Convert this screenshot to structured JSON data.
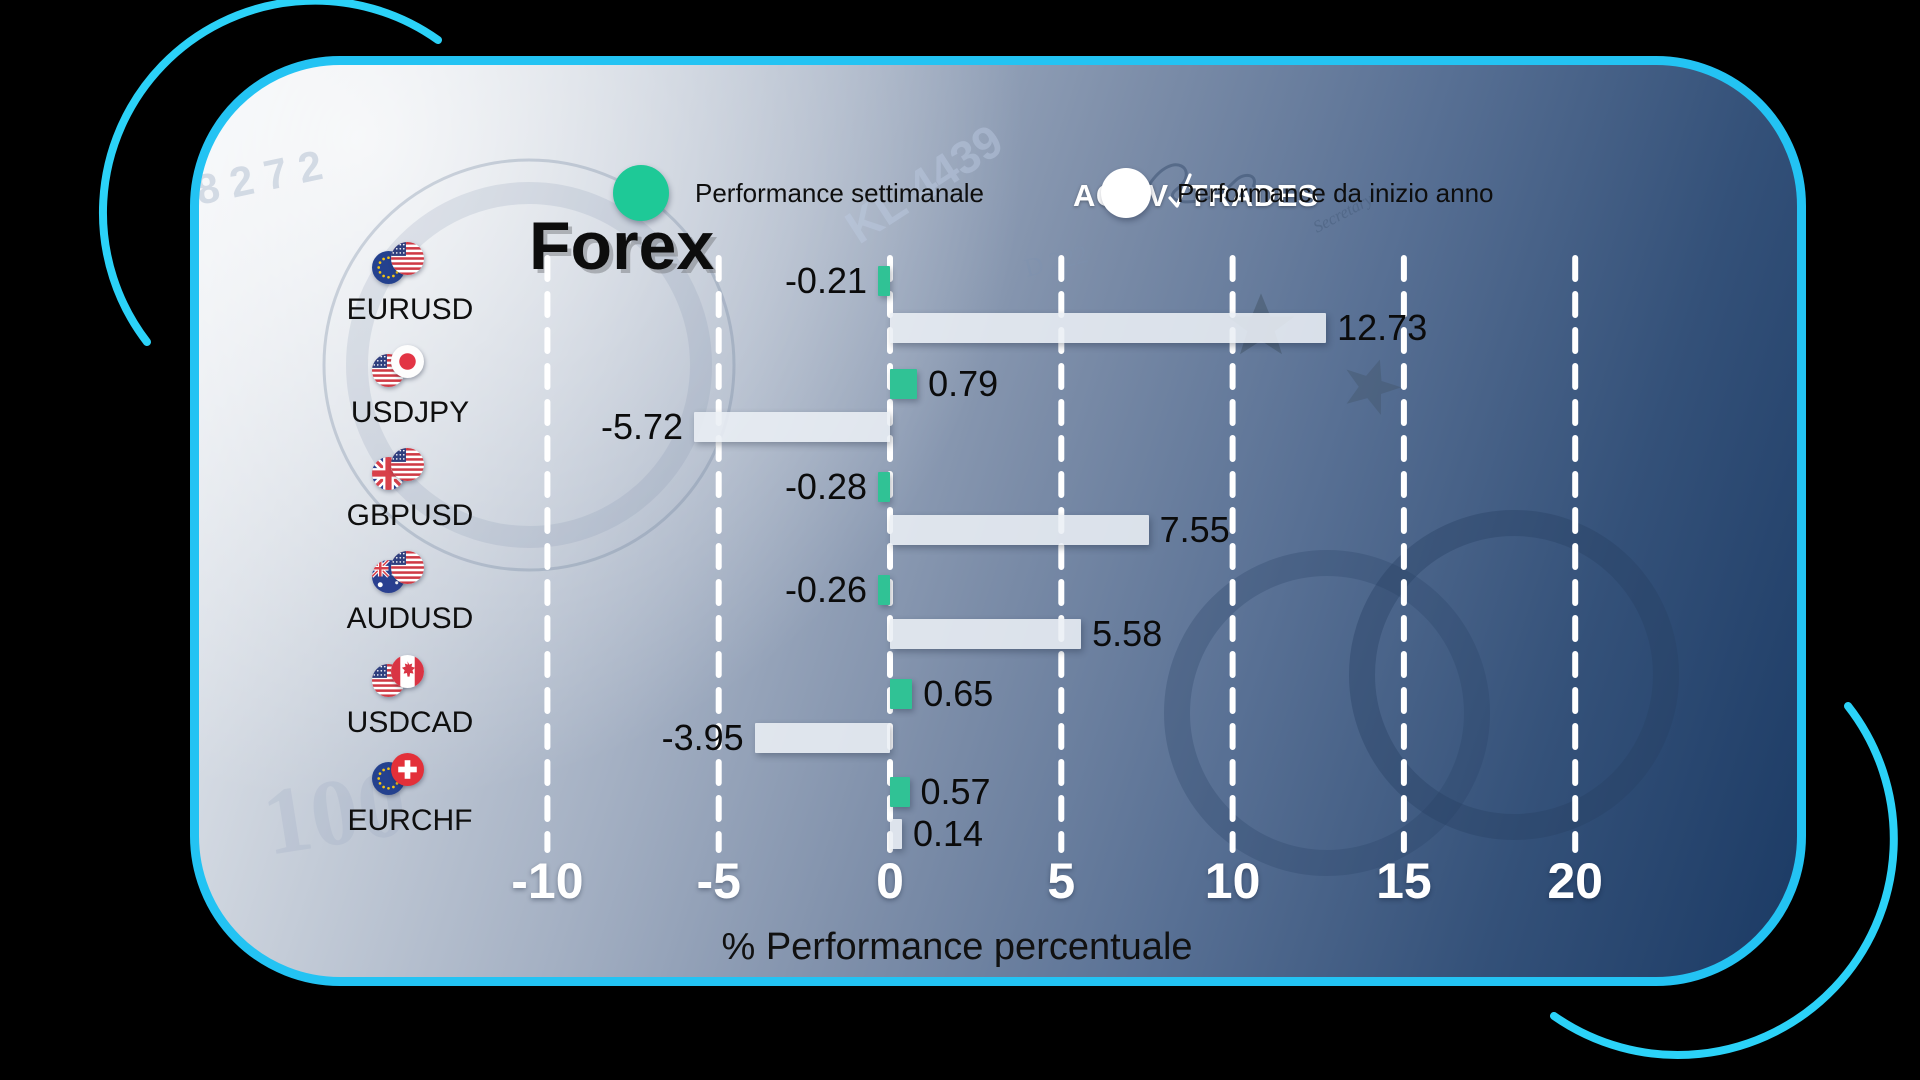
{
  "brand": {
    "logo_left": "ACTIV",
    "logo_right": "TRADES"
  },
  "title": "Forex",
  "legend": [
    {
      "label": "Performance settimanale",
      "color": "#1ec997"
    },
    {
      "label": "Performance da inizio anno",
      "color": "#ffffff"
    }
  ],
  "colors": {
    "border_accent": "#23c3f3",
    "weekly_bar": "#30c295",
    "ytd_bar": "#e9edf3",
    "text_dark": "#0d0d0d",
    "axis_text": "#ffffff"
  },
  "chart_data": {
    "type": "bar",
    "orientation": "horizontal",
    "title": "Forex",
    "xlabel": "% Performance percentuale",
    "categories": [
      "EURUSD",
      "USDJPY",
      "GBPUSD",
      "AUDUSD",
      "USDCAD",
      "EURCHF"
    ],
    "series": [
      {
        "name": "Performance settimanale",
        "color": "#1ec997",
        "values": [
          -0.21,
          0.79,
          -0.28,
          -0.26,
          0.65,
          0.57
        ]
      },
      {
        "name": "Performance da inizio anno",
        "color": "#e9edf3",
        "values": [
          12.73,
          -5.72,
          7.55,
          5.58,
          -3.95,
          0.14
        ]
      }
    ],
    "x_ticks": [
      -10,
      -5,
      0,
      5,
      10,
      15,
      20
    ],
    "xlim": [
      -12.5,
      22.5
    ],
    "grid": "dashed-vertical",
    "legend_position": "top"
  },
  "pairs": [
    {
      "name": "EURUSD",
      "flags": [
        "eu-flag-icon",
        "us-flag-icon"
      ]
    },
    {
      "name": "USDJPY",
      "flags": [
        "us-flag-icon",
        "jp-flag-icon"
      ]
    },
    {
      "name": "GBPUSD",
      "flags": [
        "gb-flag-icon",
        "us-flag-icon"
      ]
    },
    {
      "name": "AUDUSD",
      "flags": [
        "au-flag-icon",
        "us-flag-icon"
      ]
    },
    {
      "name": "USDCAD",
      "flags": [
        "us-flag-icon",
        "ca-flag-icon"
      ]
    },
    {
      "name": "EURCHF",
      "flags": [
        "eu-flag-icon",
        "ch-flag-icon"
      ]
    }
  ]
}
